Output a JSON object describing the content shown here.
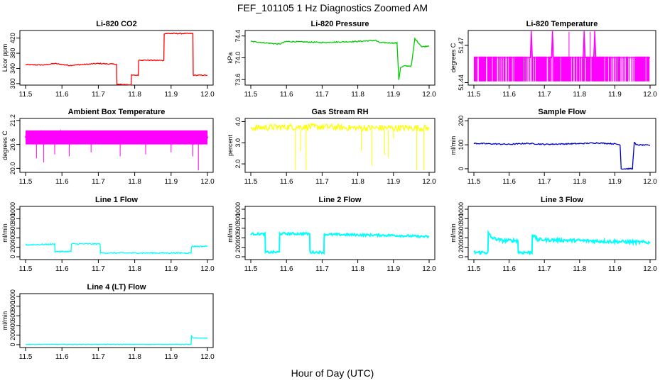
{
  "figure": {
    "title": "FEF_101105  1 Hz Diagnostics Zoomed AM",
    "xlabel": "Hour of Day (UTC)"
  },
  "chart_data": [
    {
      "type": "line",
      "title": "Li-820 CO2",
      "ylabel": "Licor ppm",
      "color": "#ff0000",
      "xlim": [
        11.5,
        12.0
      ],
      "ylim": [
        296,
        440
      ],
      "xticks": [
        11.5,
        11.6,
        11.7,
        11.8,
        11.9,
        12.0
      ],
      "xtick_labels": [
        "11.5",
        "11.6",
        "11.7",
        "11.8",
        "11.9",
        "12.0"
      ],
      "yticks": [
        300,
        340,
        380,
        420
      ],
      "ytick_labels": [
        "300",
        "340",
        "380",
        "420"
      ],
      "x": [
        11.5,
        11.55,
        11.58,
        11.62,
        11.7,
        11.75,
        11.751,
        11.79,
        11.791,
        11.81,
        11.811,
        11.88,
        11.881,
        11.96,
        11.961,
        12.0
      ],
      "y": [
        350,
        349,
        353,
        348,
        353,
        351,
        298,
        297,
        322,
        322,
        362,
        361,
        432,
        432,
        322,
        322
      ]
    },
    {
      "type": "line",
      "title": "Li-820 Pressure",
      "ylabel": "kPa",
      "color": "#00cc00",
      "xlim": [
        11.5,
        12.0
      ],
      "ylim": [
        73.5,
        74.5
      ],
      "xticks": [
        11.5,
        11.6,
        11.7,
        11.8,
        11.9,
        12.0
      ],
      "xtick_labels": [
        "11.5",
        "11.6",
        "11.7",
        "11.8",
        "11.9",
        "12.0"
      ],
      "yticks": [
        73.6,
        74.0,
        74.4
      ],
      "ytick_labels": [
        "73.6",
        "74.0",
        "74.4"
      ],
      "x": [
        11.5,
        11.58,
        11.6,
        11.7,
        11.8,
        11.85,
        11.86,
        11.91,
        11.915,
        11.92,
        11.93,
        11.95,
        11.96,
        11.98,
        12.0
      ],
      "y": [
        74.3,
        74.25,
        74.3,
        74.28,
        74.3,
        74.32,
        74.28,
        74.27,
        73.6,
        73.82,
        73.85,
        73.85,
        74.35,
        74.2,
        74.22
      ]
    },
    {
      "type": "line",
      "title": "Li-820 Temperature",
      "ylabel": "degrees C",
      "color": "#ff00ff",
      "xlim": [
        11.5,
        12.0
      ],
      "ylim": [
        51.438,
        51.482
      ],
      "xticks": [
        11.5,
        11.6,
        11.7,
        11.8,
        11.9,
        12.0
      ],
      "xtick_labels": [
        "11.5",
        "11.6",
        "11.7",
        "11.8",
        "11.9",
        "12.0"
      ],
      "yticks": [
        51.44,
        51.47
      ],
      "ytick_labels": [
        "51.44",
        "51.47"
      ],
      "x": [
        11.5,
        11.66,
        11.663,
        11.666,
        11.72,
        11.723,
        11.726,
        11.81,
        11.813,
        11.816,
        11.84,
        11.843,
        11.846,
        12.0
      ],
      "y": [
        51.46,
        51.46,
        51.482,
        51.46,
        51.46,
        51.482,
        51.46,
        51.46,
        51.482,
        51.46,
        51.46,
        51.482,
        51.46,
        51.46
      ]
    },
    {
      "type": "line",
      "title": "Ambient Box Temperature",
      "ylabel": "degrees C",
      "color": "#ff00ff",
      "xlim": [
        11.5,
        12.0
      ],
      "ylim": [
        19.9,
        21.25
      ],
      "xticks": [
        11.5,
        11.6,
        11.7,
        11.8,
        11.9,
        12.0
      ],
      "xtick_labels": [
        "11.5",
        "11.6",
        "11.7",
        "11.8",
        "11.9",
        "12.0"
      ],
      "yticks": [
        20.0,
        20.6,
        21.2
      ],
      "ytick_labels": [
        "20.0",
        "20.6",
        "21.2"
      ],
      "x": [
        11.5,
        11.6,
        11.7,
        11.8,
        11.9,
        12.0
      ],
      "y": [
        20.8,
        20.8,
        20.8,
        20.75,
        20.75,
        20.75
      ]
    },
    {
      "type": "line",
      "title": "Gas Stream RH",
      "ylabel": "percent",
      "color": "#ffff00",
      "xlim": [
        11.5,
        12.0
      ],
      "ylim": [
        1.6,
        4.15
      ],
      "xticks": [
        11.5,
        11.6,
        11.7,
        11.8,
        11.9,
        12.0
      ],
      "xtick_labels": [
        "11.5",
        "11.6",
        "11.7",
        "11.8",
        "11.9",
        "12.0"
      ],
      "yticks": [
        2.0,
        3.0,
        4.0
      ],
      "ytick_labels": [
        "2.0",
        "3.0",
        "4.0"
      ],
      "x": [
        11.5,
        11.6,
        11.7,
        11.8,
        11.9,
        12.0
      ],
      "y": [
        3.7,
        3.75,
        3.75,
        3.7,
        3.7,
        3.7
      ]
    },
    {
      "type": "line",
      "title": "Sample Flow",
      "ylabel": "ml/min",
      "color": "#0000cc",
      "xlim": [
        11.5,
        12.0
      ],
      "ylim": [
        -15,
        210
      ],
      "xticks": [
        11.5,
        11.6,
        11.7,
        11.8,
        11.9,
        12.0
      ],
      "xtick_labels": [
        "11.5",
        "11.6",
        "11.7",
        "11.8",
        "11.9",
        "12.0"
      ],
      "yticks": [
        0,
        100,
        200
      ],
      "ytick_labels": [
        "0",
        "100",
        "200"
      ],
      "x": [
        11.5,
        11.6,
        11.65,
        11.7,
        11.8,
        11.85,
        11.9,
        11.915,
        11.918,
        11.95,
        11.955,
        11.96,
        12.0
      ],
      "y": [
        106,
        102,
        106,
        102,
        105,
        108,
        104,
        100,
        0,
        0,
        112,
        100,
        98
      ]
    },
    {
      "type": "line",
      "title": "Line 1 Flow",
      "ylabel": "ml/min",
      "color": "#00ffff",
      "xlim": [
        11.5,
        12.0
      ],
      "ylim": [
        -60,
        1060
      ],
      "xticks": [
        11.5,
        11.6,
        11.7,
        11.8,
        11.9,
        12.0
      ],
      "xtick_labels": [
        "11.5",
        "11.6",
        "11.7",
        "11.8",
        "11.9",
        "12.0"
      ],
      "yticks": [
        0,
        200,
        400,
        600,
        800,
        1000
      ],
      "ytick_labels": [
        "0",
        "200",
        "400",
        "600",
        "800",
        "1000"
      ],
      "x": [
        11.5,
        11.58,
        11.581,
        11.625,
        11.626,
        11.705,
        11.706,
        11.955,
        11.956,
        12.0
      ],
      "y": [
        250,
        265,
        110,
        110,
        270,
        270,
        80,
        80,
        215,
        220
      ]
    },
    {
      "type": "line",
      "title": "Line 2 Flow",
      "ylabel": "ml/min",
      "color": "#00ffff",
      "xlim": [
        11.5,
        12.0
      ],
      "ylim": [
        -60,
        1060
      ],
      "xticks": [
        11.5,
        11.6,
        11.7,
        11.8,
        11.9,
        12.0
      ],
      "xtick_labels": [
        "11.5",
        "11.6",
        "11.7",
        "11.8",
        "11.9",
        "12.0"
      ],
      "yticks": [
        0,
        200,
        400,
        600,
        800,
        1000
      ],
      "ytick_labels": [
        "0",
        "200",
        "400",
        "600",
        "800",
        "1000"
      ],
      "x": [
        11.5,
        11.54,
        11.541,
        11.58,
        11.581,
        11.665,
        11.666,
        11.705,
        11.706,
        11.8,
        11.9,
        12.0
      ],
      "y": [
        480,
        480,
        95,
        95,
        485,
        485,
        95,
        95,
        470,
        460,
        450,
        420
      ]
    },
    {
      "type": "line",
      "title": "Line 3 Flow",
      "ylabel": "ml/min",
      "color": "#00ffff",
      "xlim": [
        11.5,
        12.0
      ],
      "ylim": [
        -60,
        1060
      ],
      "xticks": [
        11.5,
        11.6,
        11.7,
        11.8,
        11.9,
        12.0
      ],
      "xtick_labels": [
        "11.5",
        "11.6",
        "11.7",
        "11.8",
        "11.9",
        "12.0"
      ],
      "yticks": [
        0,
        200,
        400,
        600,
        800,
        1000
      ],
      "ytick_labels": [
        "0",
        "200",
        "400",
        "600",
        "800",
        "1000"
      ],
      "x": [
        11.5,
        11.54,
        11.541,
        11.55,
        11.58,
        11.625,
        11.626,
        11.665,
        11.666,
        11.68,
        11.8,
        11.9,
        12.0
      ],
      "y": [
        90,
        90,
        500,
        400,
        340,
        340,
        90,
        90,
        480,
        360,
        340,
        320,
        300
      ]
    },
    {
      "type": "line",
      "title": "Line 4 (LT) Flow",
      "ylabel": "ml/min",
      "color": "#00ffff",
      "xlim": [
        11.5,
        12.0
      ],
      "ylim": [
        -60,
        1060
      ],
      "xticks": [
        11.5,
        11.6,
        11.7,
        11.8,
        11.9,
        12.0
      ],
      "xtick_labels": [
        "11.5",
        "11.6",
        "11.7",
        "11.8",
        "11.9",
        "12.0"
      ],
      "yticks": [
        0,
        200,
        400,
        600,
        800,
        1000
      ],
      "ytick_labels": [
        "0",
        "200",
        "400",
        "600",
        "800",
        "1000"
      ],
      "x": [
        11.5,
        11.7,
        11.955,
        11.956,
        11.96,
        12.0
      ],
      "y": [
        5,
        5,
        5,
        180,
        140,
        135
      ]
    }
  ]
}
